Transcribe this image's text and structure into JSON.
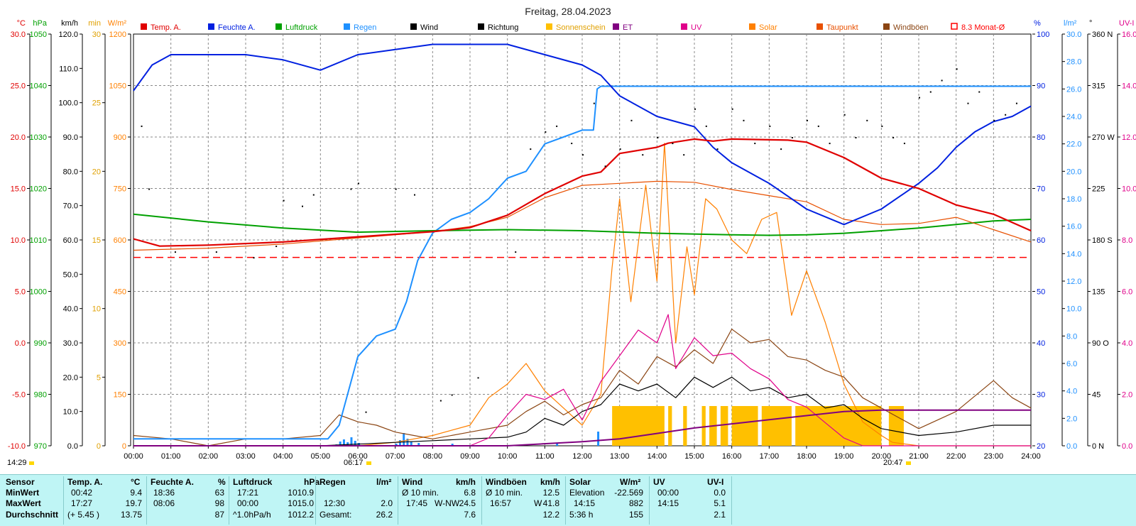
{
  "title": "Freitag, 28.04.2023",
  "colors": {
    "temp": "#e00000",
    "humidity": "#0020e0",
    "pressure": "#00a000",
    "rain": "#1e90ff",
    "wind": "#000000",
    "direction": "#000000",
    "sunshine": "#ffc000",
    "et": "#800080",
    "uv": "#e0008a",
    "solar": "#ff8000",
    "dewpoint": "#e85000",
    "gusts": "#8b4513",
    "avg": "#ff0000"
  },
  "legend": [
    {
      "label": "Temp. A.",
      "color": "#e00000"
    },
    {
      "label": "Feuchte A.",
      "color": "#0020e0"
    },
    {
      "label": "Luftdruck",
      "color": "#00a000"
    },
    {
      "label": "Regen",
      "color": "#1e90ff"
    },
    {
      "label": "Wind",
      "color": "#000000"
    },
    {
      "label": "Richtung",
      "color": "#000000"
    },
    {
      "label": "Sonnenschein",
      "color": "#ffc000"
    },
    {
      "label": "ET",
      "color": "#800080"
    },
    {
      "label": "UV",
      "color": "#e0008a"
    },
    {
      "label": "Solar",
      "color": "#ff8000"
    },
    {
      "label": "Taupunkt",
      "color": "#e85000"
    },
    {
      "label": "Windböen",
      "color": "#8b4513"
    },
    {
      "label": "8.3 Monat-Ø",
      "color": "#ff0000"
    }
  ],
  "chart_data": {
    "type": "line",
    "title": "Freitag, 28.04.2023",
    "x_ticks": [
      "00:00",
      "01:00",
      "02:00",
      "03:00",
      "04:00",
      "05:00",
      "06:00",
      "07:00",
      "08:00",
      "09:00",
      "10:00",
      "11:00",
      "12:00",
      "13:00",
      "14:00",
      "15:00",
      "16:00",
      "17:00",
      "18:00",
      "19:00",
      "20:00",
      "21:00",
      "22:00",
      "23:00",
      "24:00"
    ],
    "x_range_hours": [
      0,
      24
    ],
    "left_axes": [
      {
        "unit": "°C",
        "color": "#e00000",
        "min": -10,
        "max": 30,
        "ticks": [
          "30.0",
          "25.0",
          "20.0",
          "15.0",
          "10.0",
          "5.0",
          "0.0",
          "-5.0",
          "-10.0"
        ]
      },
      {
        "unit": "hPa",
        "color": "#00a000",
        "min": 970,
        "max": 1050,
        "ticks": [
          "1050",
          "1040",
          "1030",
          "1020",
          "1010",
          "1000",
          "990",
          "980",
          "970"
        ]
      },
      {
        "unit": "km/h",
        "color": "#000000",
        "min": 0,
        "max": 120,
        "ticks": [
          "120.0",
          "110.0",
          "100.0",
          "90.0",
          "80.0",
          "70.0",
          "60.0",
          "50.0",
          "40.0",
          "30.0",
          "20.0",
          "10.0",
          "0.0"
        ]
      },
      {
        "unit": "min",
        "color": "#e0a000",
        "min": 0,
        "max": 30,
        "ticks": [
          "30",
          "25",
          "20",
          "15",
          "10",
          "5",
          "0"
        ]
      },
      {
        "unit": "W/m²",
        "color": "#ff8000",
        "min": 0,
        "max": 1200,
        "ticks": [
          "1200",
          "1050",
          "900",
          "750",
          "600",
          "450",
          "300",
          "150",
          "0"
        ]
      }
    ],
    "right_axes": [
      {
        "unit": "%",
        "color": "#0020e0",
        "min": 20,
        "max": 100,
        "ticks": [
          "100",
          "90",
          "80",
          "70",
          "60",
          "50",
          "40",
          "30",
          "20"
        ]
      },
      {
        "unit": "l/m²",
        "color": "#1e90ff",
        "min": 0,
        "max": 30,
        "ticks": [
          "30.0",
          "28.0",
          "26.0",
          "24.0",
          "22.0",
          "20.0",
          "18.0",
          "16.0",
          "14.0",
          "12.0",
          "10.0",
          "8.0",
          "6.0",
          "4.0",
          "2.0",
          "0.0"
        ]
      },
      {
        "unit": "°",
        "color": "#000000",
        "min": 0,
        "max": 360,
        "ticks": [
          "360 N",
          "315",
          "270 W",
          "225",
          "180 S",
          "135",
          "90 O",
          "45",
          "0 N"
        ]
      },
      {
        "unit": "UV-I",
        "color": "#e0008a",
        "min": 0,
        "max": 16,
        "ticks": [
          "16.0",
          "14.0",
          "12.0",
          "10.0",
          "8.0",
          "6.0",
          "4.0",
          "2.0",
          "0.0"
        ]
      }
    ],
    "monthly_avg_temp": 8.3,
    "series": [
      {
        "name": "Temp. A.",
        "unit": "°C",
        "x": [
          0,
          0.7,
          2,
          4,
          6,
          8,
          9,
          10,
          11,
          12,
          12.5,
          13,
          14,
          14.3,
          15,
          15.5,
          16,
          17.5,
          18,
          19,
          20,
          21,
          22,
          23,
          24
        ],
        "y": [
          10.1,
          9.4,
          9.5,
          9.8,
          10.3,
          10.8,
          11.2,
          12.4,
          14.5,
          16.2,
          16.6,
          18.4,
          19.0,
          19.4,
          19.8,
          19.6,
          19.8,
          19.7,
          19.5,
          18.0,
          16.0,
          15.0,
          13.4,
          12.5,
          10.9
        ]
      },
      {
        "name": "Taupunkt",
        "unit": "°C",
        "x": [
          0,
          2,
          4,
          6,
          8,
          9,
          10,
          11,
          12,
          13,
          14,
          15,
          16,
          17,
          18,
          19,
          20,
          21,
          22,
          23,
          24
        ],
        "y": [
          9.0,
          9.2,
          9.6,
          10.2,
          10.8,
          11.3,
          12.2,
          14.1,
          15.3,
          15.5,
          15.7,
          15.6,
          14.9,
          14.3,
          13.7,
          12.0,
          11.5,
          11.6,
          12.2,
          11.0,
          9.8
        ]
      },
      {
        "name": "Luftdruck",
        "unit": "hPa",
        "x": [
          0,
          2,
          4,
          6,
          8,
          10,
          12,
          14,
          16,
          17,
          18,
          19,
          20,
          21,
          22,
          23,
          24
        ],
        "y": [
          1015.0,
          1013.5,
          1012.3,
          1011.5,
          1011.8,
          1012.0,
          1011.8,
          1011.3,
          1011.0,
          1010.9,
          1011.0,
          1011.3,
          1011.8,
          1012.3,
          1013.0,
          1013.7,
          1014.0
        ]
      },
      {
        "name": "Feuchte A.",
        "unit": "%",
        "x": [
          0,
          0.5,
          1,
          2,
          3,
          4,
          5,
          6,
          7,
          8,
          9,
          10,
          11,
          12,
          12.5,
          13,
          14,
          15,
          15.5,
          16,
          17,
          18,
          19,
          20,
          21,
          21.5,
          22,
          22.5,
          23,
          23.5,
          24
        ],
        "y": [
          89,
          94,
          96,
          96,
          96,
          95,
          93,
          96,
          97,
          98,
          98,
          98,
          96,
          94,
          92,
          88,
          84,
          82,
          78,
          75,
          71,
          66,
          63,
          66,
          71,
          74,
          78,
          81,
          83,
          84,
          86
        ]
      },
      {
        "name": "Regen",
        "unit": "l/m²",
        "x": [
          0,
          5.2,
          5.5,
          5.8,
          6,
          6.5,
          7,
          7.3,
          7.6,
          8,
          8.5,
          9,
          9.5,
          10,
          10.5,
          11,
          11.5,
          12,
          12.3,
          12.4,
          12.5,
          13,
          24
        ],
        "y": [
          0.5,
          0.5,
          1.5,
          4.5,
          6.5,
          8.0,
          8.5,
          10.5,
          13.5,
          15.5,
          16.5,
          17.0,
          18.0,
          19.5,
          20.0,
          22.0,
          22.5,
          23.0,
          23.0,
          26.0,
          26.2,
          26.2,
          26.2
        ]
      },
      {
        "name": "ET",
        "unit": "l/m²",
        "x": [
          0,
          10,
          12,
          13,
          14,
          15,
          16,
          17,
          18,
          19,
          20,
          21,
          22,
          23,
          24
        ],
        "y": [
          0,
          0,
          0.3,
          0.5,
          0.9,
          1.3,
          1.6,
          1.9,
          2.2,
          2.5,
          2.6,
          2.6,
          2.6,
          2.6,
          2.6
        ]
      },
      {
        "name": "Solar",
        "unit": "W/m²",
        "x": [
          0,
          6,
          7,
          8,
          9,
          9.5,
          10,
          10.5,
          11,
          11.5,
          12,
          12.5,
          12.8,
          13,
          13.3,
          13.7,
          14,
          14.2,
          14.5,
          14.8,
          15,
          15.3,
          15.6,
          16,
          16.4,
          16.8,
          17.2,
          17.6,
          18,
          18.5,
          19,
          19.5,
          20,
          20.3,
          21,
          24
        ],
        "y": [
          0,
          0,
          10,
          30,
          60,
          140,
          180,
          240,
          160,
          110,
          60,
          150,
          520,
          720,
          420,
          760,
          480,
          882,
          300,
          580,
          440,
          720,
          690,
          600,
          560,
          660,
          680,
          380,
          510,
          360,
          180,
          70,
          30,
          10,
          0,
          0
        ]
      },
      {
        "name": "Wind",
        "unit": "km/h",
        "x": [
          0,
          5,
          6,
          7,
          8,
          9,
          10,
          10.5,
          11,
          11.5,
          12,
          12.5,
          13,
          13.5,
          14,
          14.5,
          15,
          15.5,
          16,
          16.5,
          17,
          17.5,
          18,
          18.5,
          19,
          19.5,
          20,
          21,
          22,
          23,
          24
        ],
        "y": [
          0,
          0,
          0.5,
          1,
          1.5,
          2,
          2.5,
          4,
          8,
          6,
          10,
          12,
          18,
          16,
          18,
          14,
          20,
          17,
          20,
          16,
          17,
          14,
          15,
          11,
          12,
          8,
          5,
          3,
          4,
          6,
          6
        ]
      },
      {
        "name": "Windböen",
        "unit": "km/h",
        "x": [
          0,
          1,
          2,
          3,
          4,
          5,
          5.5,
          6,
          6.5,
          7,
          7.5,
          8,
          9,
          10,
          10.5,
          11,
          11.5,
          12,
          12.5,
          13,
          13.5,
          14,
          14.5,
          15,
          15.5,
          16,
          16.5,
          17,
          17.5,
          18,
          18.5,
          19,
          19.5,
          20,
          21,
          22,
          23,
          23.5,
          24
        ],
        "y": [
          3,
          2,
          0,
          2,
          2,
          3,
          9,
          7,
          6,
          4,
          3,
          2,
          4,
          6,
          10,
          13,
          9,
          12,
          14,
          22,
          18,
          26,
          23,
          28,
          24,
          34,
          30,
          31,
          26,
          25,
          22,
          20,
          14,
          11,
          5,
          10,
          19,
          14,
          11
        ]
      },
      {
        "name": "UV",
        "unit": "UV-I",
        "x": [
          0,
          9,
          9.5,
          10,
          10.5,
          11,
          11.5,
          12,
          12.5,
          13,
          13.5,
          14,
          14.3,
          14.5,
          15,
          15.5,
          16,
          16.5,
          17,
          17.5,
          18,
          18.5,
          19,
          19.5,
          24
        ],
        "y": [
          0,
          0,
          0.3,
          1.2,
          2.0,
          1.8,
          2.2,
          1.0,
          2.5,
          3.5,
          4.5,
          4.0,
          5.1,
          3.0,
          4.2,
          3.5,
          3.6,
          3.0,
          2.6,
          1.8,
          1.5,
          0.9,
          0.3,
          0,
          0
        ]
      },
      {
        "name": "Sonnenschein",
        "unit": "min",
        "type": "bar",
        "periods_hours": [
          [
            12.8,
            14.2
          ],
          [
            14.3,
            14.4
          ],
          [
            14.7,
            14.8
          ],
          [
            15.2,
            15.3
          ],
          [
            15.4,
            15.6
          ],
          [
            15.7,
            15.9
          ],
          [
            16.0,
            16.7
          ],
          [
            16.8,
            17.6
          ],
          [
            17.7,
            20.0
          ],
          [
            20.2,
            20.6
          ]
        ]
      },
      {
        "name": "Richtung",
        "unit": "°",
        "type": "scatter",
        "x": [
          0.2,
          0.4,
          1.1,
          2.2,
          3.2,
          3.8,
          4.0,
          4.5,
          4.8,
          5.8,
          6.0,
          6.2,
          7.0,
          7.5,
          8.2,
          8.5,
          9.2,
          10.2,
          10.6,
          11.0,
          11.3,
          11.7,
          12.0,
          12.3,
          12.6,
          13.0,
          13.3,
          13.6,
          14.0,
          14.4,
          14.7,
          15.0,
          15.3,
          15.6,
          16.0,
          16.3,
          16.6,
          17.0,
          17.3,
          17.6,
          18.0,
          18.3,
          18.6,
          19.0,
          19.3,
          19.6,
          20.0,
          20.3,
          20.6,
          21.0,
          21.3,
          21.6,
          22.0,
          22.3,
          22.6,
          23.0,
          23.3,
          23.6
        ],
        "y": [
          280,
          225,
          170,
          170,
          165,
          175,
          215,
          210,
          220,
          225,
          230,
          30,
          225,
          220,
          40,
          45,
          60,
          170,
          260,
          275,
          280,
          265,
          255,
          300,
          245,
          260,
          285,
          255,
          270,
          265,
          255,
          295,
          280,
          260,
          295,
          285,
          265,
          280,
          260,
          270,
          285,
          280,
          265,
          290,
          270,
          285,
          280,
          270,
          265,
          305,
          310,
          320,
          330,
          300,
          310,
          285,
          290,
          300
        ]
      }
    ]
  },
  "markers": {
    "time_left": "14:29",
    "sunrise": "06:17",
    "sunset": "20:47"
  },
  "stats": {
    "row_labels": [
      "Sensor",
      "MinWert",
      "MaxWert",
      "Durchschnitt"
    ],
    "temp": {
      "header": "Temp. A.",
      "unit": "°C",
      "min_time": "00:42",
      "min": "9.4",
      "max_time": "17:27",
      "max": "19.7",
      "avg_note": "(+ 5.45 )",
      "avg": "13.75"
    },
    "humidity": {
      "header": "Feuchte A.",
      "unit": "%",
      "min_time": "18:36",
      "min": "63",
      "max_time": "08:06",
      "max": "98",
      "avg": "87"
    },
    "pressure": {
      "header": "Luftdruck",
      "unit": "hPa",
      "min_time": "17:21",
      "min": "1010.9",
      "max_time": "00:00",
      "max": "1015.0",
      "avg_note": "^1.0hPa/h",
      "avg": "1012.2"
    },
    "rain": {
      "header": "Regen",
      "unit": "l/m²",
      "max_time": "12:30",
      "max": "2.0",
      "total_label": "Gesamt:",
      "total": "26.2"
    },
    "wind": {
      "header": "Wind",
      "unit": "km/h",
      "min_label": "Ø 10 min.",
      "min": "6.8",
      "max_time": "17:45",
      "max_dir": "W-NW",
      "max": "24.5",
      "avg": "7.6"
    },
    "gusts": {
      "header": "Windböen",
      "unit": "km/h",
      "min_label": "Ø 10 min.",
      "min": "12.5",
      "max_time": "16:57",
      "max_dir": "W",
      "max": "41.8",
      "avg": "12.2"
    },
    "solar": {
      "header": "Solar",
      "unit": "W/m²",
      "min_label": "Elevation",
      "min": "-22.569",
      "max_time": "14:15",
      "max": "882",
      "avg_note": "5:36 h",
      "avg": "155"
    },
    "uv": {
      "header": "UV",
      "unit": "UV-I",
      "min_time": "00:00",
      "min": "0.0",
      "max_time": "14:15",
      "max": "5.1",
      "avg": "2.1"
    }
  }
}
